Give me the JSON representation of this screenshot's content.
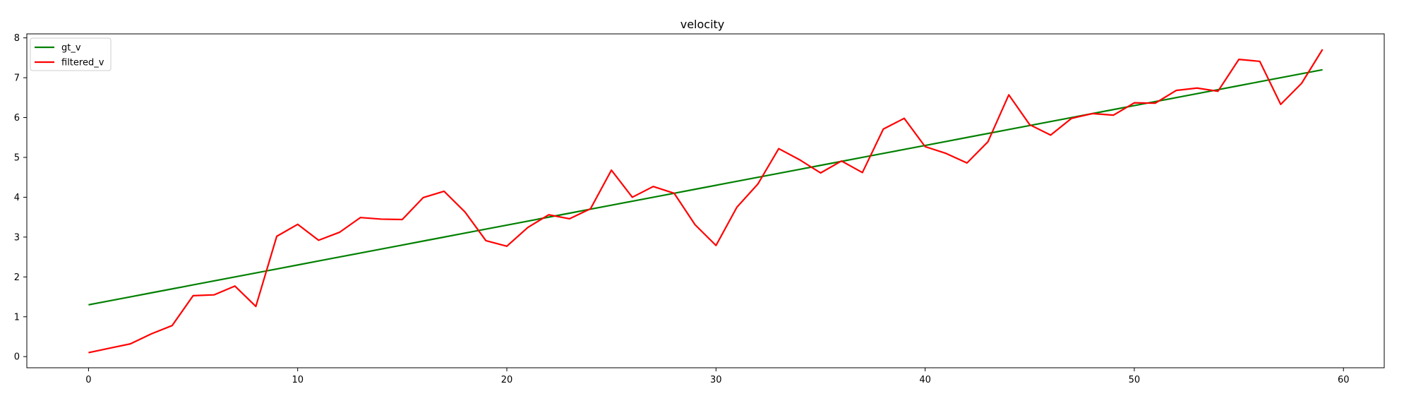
{
  "chart_data": {
    "type": "line",
    "title": "velocity",
    "xlabel": "",
    "ylabel": "",
    "xlim": [
      -2.95,
      61.95
    ],
    "ylim": [
      -0.28,
      8.1
    ],
    "xticks": [
      0,
      10,
      20,
      30,
      40,
      50,
      60
    ],
    "yticks": [
      0,
      1,
      2,
      3,
      4,
      5,
      6,
      7,
      8
    ],
    "grid": false,
    "legend_position": "upper left",
    "x": [
      0,
      1,
      2,
      3,
      4,
      5,
      6,
      7,
      8,
      9,
      10,
      11,
      12,
      13,
      14,
      15,
      16,
      17,
      18,
      19,
      20,
      21,
      22,
      23,
      24,
      25,
      26,
      27,
      28,
      29,
      30,
      31,
      32,
      33,
      34,
      35,
      36,
      37,
      38,
      39,
      40,
      41,
      42,
      43,
      44,
      45,
      46,
      47,
      48,
      49,
      50,
      51,
      52,
      53,
      54,
      55,
      56,
      57,
      58,
      59
    ],
    "series": [
      {
        "name": "gt_v",
        "color": "#008000",
        "values": [
          1.3,
          1.4,
          1.5,
          1.6,
          1.7,
          1.8,
          1.9,
          2.0,
          2.1,
          2.2,
          2.3,
          2.4,
          2.5,
          2.6,
          2.7,
          2.8,
          2.9,
          3.0,
          3.1,
          3.2,
          3.3,
          3.4,
          3.5,
          3.6,
          3.7,
          3.8,
          3.9,
          4.0,
          4.1,
          4.2,
          4.3,
          4.4,
          4.5,
          4.6,
          4.7,
          4.8,
          4.9,
          5.0,
          5.1,
          5.2,
          5.3,
          5.4,
          5.5,
          5.6,
          5.7,
          5.8,
          5.9,
          6.0,
          6.1,
          6.2,
          6.3,
          6.4,
          6.5,
          6.6,
          6.7,
          6.8,
          6.9,
          7.0,
          7.1,
          7.2
        ]
      },
      {
        "name": "filtered_v",
        "color": "#ff0000",
        "values": [
          0.1,
          0.21,
          0.32,
          0.57,
          0.78,
          1.53,
          1.55,
          1.77,
          1.26,
          3.02,
          3.32,
          2.92,
          3.12,
          3.49,
          3.45,
          3.44,
          3.99,
          4.15,
          3.63,
          2.91,
          2.77,
          3.24,
          3.56,
          3.46,
          3.71,
          4.68,
          4.0,
          4.27,
          4.1,
          3.31,
          2.79,
          3.75,
          4.33,
          5.22,
          4.94,
          4.61,
          4.91,
          4.62,
          5.71,
          5.98,
          5.27,
          5.1,
          4.86,
          5.39,
          6.57,
          5.82,
          5.56,
          5.98,
          6.1,
          6.06,
          6.37,
          6.36,
          6.68,
          6.74,
          6.66,
          7.46,
          7.41,
          6.33,
          6.86,
          7.71
        ]
      }
    ]
  }
}
